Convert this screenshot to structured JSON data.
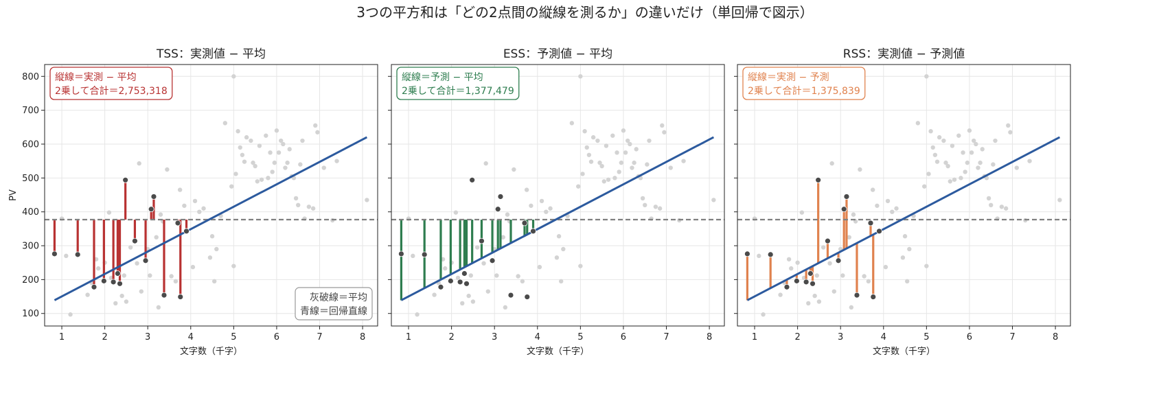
{
  "figure": {
    "suptitle": "3つの平方和は「どの2点間の縦線を測るか」の違いだけ（単回帰で図示）"
  },
  "colors": {
    "regression_line": "#2c5a9e",
    "mean_line": "#808080",
    "background_points": "#d3d3d3",
    "highlight_points": "#4a4a4a",
    "tss": "#b83232",
    "ess": "#2e7d4f",
    "rss": "#e0824e",
    "grid": "#e6e6e6"
  },
  "legend_note": {
    "line1": "灰破線＝平均",
    "line2": "青線＝回帰直線"
  },
  "chart_data": {
    "type": "scatter",
    "xlabel": "文字数（千字）",
    "ylabel": "PV",
    "xlim": [
      0.6,
      8.35
    ],
    "ylim": [
      63,
      835
    ],
    "xticks": [
      1,
      2,
      3,
      4,
      5,
      6,
      7,
      8
    ],
    "yticks": [
      100,
      200,
      300,
      400,
      500,
      600,
      700,
      800
    ],
    "grid": true,
    "mean_y": 377,
    "regression": {
      "intercept": 84.1,
      "slope": 66.2,
      "x_start": 0.83,
      "x_end": 8.1
    },
    "panels": [
      {
        "id": "tss",
        "title": "TSS：実測値 − 平均",
        "box_line1": "縦線＝実測 − 平均",
        "box_line2": "2乗して合計＝2,753,318",
        "from": "actual",
        "to": "mean",
        "show_note": true
      },
      {
        "id": "ess",
        "title": "ESS：予測値 − 平均",
        "box_line1": "縦線＝予測 − 平均",
        "box_line2": "2乗して合計＝1,377,479",
        "from": "predicted",
        "to": "mean",
        "show_note": false
      },
      {
        "id": "rss",
        "title": "RSS：実測値 − 予測値",
        "box_line1": "縦線＝実測 − 予測",
        "box_line2": "2乗して合計＝1,375,839",
        "from": "actual",
        "to": "predicted",
        "show_note": false
      }
    ],
    "highlighted_points": [
      [
        0.83,
        276
      ],
      [
        1.37,
        274
      ],
      [
        1.75,
        178
      ],
      [
        1.98,
        196
      ],
      [
        2.2,
        193
      ],
      [
        2.3,
        218
      ],
      [
        2.35,
        188
      ],
      [
        2.48,
        494
      ],
      [
        2.7,
        314
      ],
      [
        2.95,
        256
      ],
      [
        3.08,
        408
      ],
      [
        3.14,
        445
      ],
      [
        3.38,
        154
      ],
      [
        3.7,
        367
      ],
      [
        3.76,
        149
      ],
      [
        3.9,
        343
      ]
    ],
    "background_points": [
      [
        1.0,
        380
      ],
      [
        1.1,
        270
      ],
      [
        1.2,
        97
      ],
      [
        1.6,
        155
      ],
      [
        1.7,
        190
      ],
      [
        1.8,
        260
      ],
      [
        1.85,
        233
      ],
      [
        2.0,
        250
      ],
      [
        2.1,
        398
      ],
      [
        2.15,
        205
      ],
      [
        2.25,
        130
      ],
      [
        2.4,
        152
      ],
      [
        2.45,
        212
      ],
      [
        2.5,
        135
      ],
      [
        2.6,
        295
      ],
      [
        2.75,
        248
      ],
      [
        2.8,
        543
      ],
      [
        2.85,
        165
      ],
      [
        3.0,
        290
      ],
      [
        3.05,
        212
      ],
      [
        3.2,
        325
      ],
      [
        3.25,
        118
      ],
      [
        3.3,
        392
      ],
      [
        3.35,
        372
      ],
      [
        3.45,
        525
      ],
      [
        3.55,
        210
      ],
      [
        3.65,
        195
      ],
      [
        3.75,
        465
      ],
      [
        3.85,
        418
      ],
      [
        4.05,
        237
      ],
      [
        4.1,
        432
      ],
      [
        4.2,
        400
      ],
      [
        4.3,
        410
      ],
      [
        4.45,
        265
      ],
      [
        4.5,
        328
      ],
      [
        4.55,
        195
      ],
      [
        4.6,
        290
      ],
      [
        4.7,
        388
      ],
      [
        4.8,
        662
      ],
      [
        4.95,
        475
      ],
      [
        5.0,
        240
      ],
      [
        5.0,
        800
      ],
      [
        5.05,
        512
      ],
      [
        5.1,
        638
      ],
      [
        5.15,
        590
      ],
      [
        5.2,
        568
      ],
      [
        5.25,
        548
      ],
      [
        5.3,
        620
      ],
      [
        5.4,
        610
      ],
      [
        5.45,
        545
      ],
      [
        5.5,
        535
      ],
      [
        5.55,
        490
      ],
      [
        5.6,
        595
      ],
      [
        5.65,
        495
      ],
      [
        5.75,
        625
      ],
      [
        5.8,
        500
      ],
      [
        5.85,
        575
      ],
      [
        5.9,
        518
      ],
      [
        5.95,
        545
      ],
      [
        6.0,
        640
      ],
      [
        6.05,
        575
      ],
      [
        6.1,
        610
      ],
      [
        6.15,
        600
      ],
      [
        6.2,
        530
      ],
      [
        6.25,
        545
      ],
      [
        6.3,
        585
      ],
      [
        6.35,
        505
      ],
      [
        6.4,
        500
      ],
      [
        6.45,
        440
      ],
      [
        6.5,
        420
      ],
      [
        6.55,
        540
      ],
      [
        6.6,
        610
      ],
      [
        6.65,
        380
      ],
      [
        6.75,
        415
      ],
      [
        6.85,
        410
      ],
      [
        6.9,
        655
      ],
      [
        6.95,
        635
      ],
      [
        7.1,
        530
      ],
      [
        7.3,
        375
      ],
      [
        7.4,
        550
      ],
      [
        8.1,
        435
      ]
    ]
  }
}
